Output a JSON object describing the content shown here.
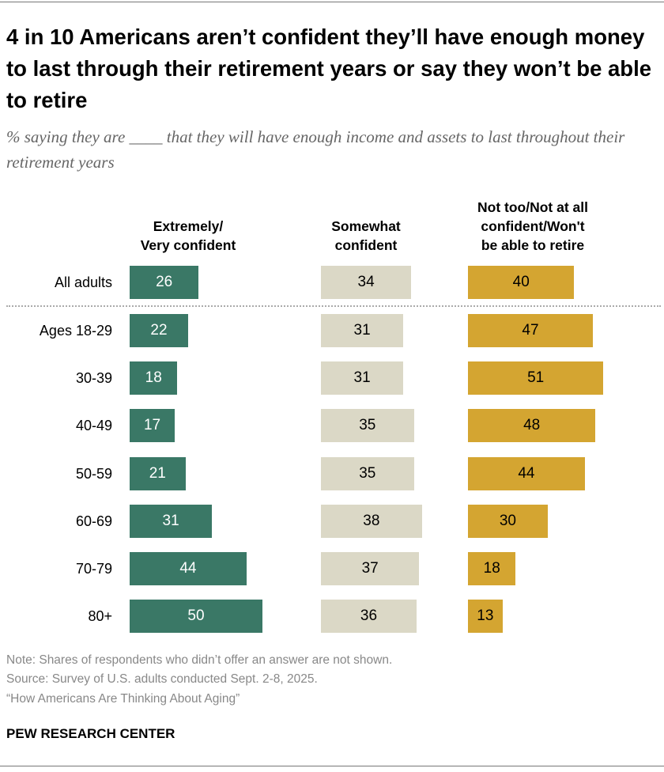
{
  "title": "4 in 10 Americans aren’t confident they’ll have enough money to last through their retirement years or say they won’t be able to retire",
  "subtitle": "% saying they are ____ that they will have enough income and assets to last throughout their retirement years",
  "chart_data": {
    "type": "bar",
    "orientation": "horizontal",
    "categories": [
      "All adults",
      "Ages 18-29",
      "30-39",
      "40-49",
      "50-59",
      "60-69",
      "70-79",
      "80+"
    ],
    "series": [
      {
        "name": "Extremely/\nVery confident",
        "color": "#3a7866",
        "values": [
          26,
          22,
          18,
          17,
          21,
          31,
          44,
          50
        ]
      },
      {
        "name": "Somewhat\nconfident",
        "color": "#dbd8c6",
        "values": [
          34,
          31,
          31,
          35,
          35,
          38,
          37,
          36
        ]
      },
      {
        "name": "Not too/Not at all\nconfident/Won't\nbe able to retire",
        "color": "#d4a531",
        "values": [
          40,
          47,
          51,
          48,
          44,
          30,
          18,
          13
        ]
      }
    ]
  },
  "notes": [
    "Note: Shares of respondents who didn’t offer an answer are not shown.",
    "Source: Survey of U.S. adults conducted Sept. 2-8, 2025.",
    "“How Americans Are Thinking About Aging”"
  ],
  "logo": "PEW RESEARCH CENTER"
}
